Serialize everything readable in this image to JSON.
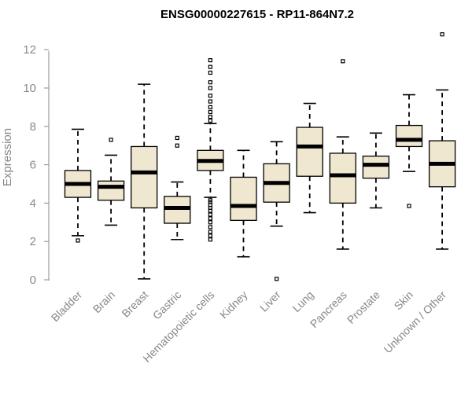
{
  "chart_data": {
    "type": "box",
    "title": "ENSG00000227615 - RP11-864N7.2",
    "ylabel": "Expression",
    "xlabel": "",
    "ylim": [
      0,
      12.5
    ],
    "yticks": [
      0,
      2,
      4,
      6,
      8,
      10,
      12
    ],
    "grid": false,
    "categories": [
      "Bladder",
      "Brain",
      "Breast",
      "Gastric",
      "Hematopoietic cells",
      "Kidney",
      "Liver",
      "Lung",
      "Pancreas",
      "Prostate",
      "Skin",
      "Unknown / Other"
    ],
    "boxes": [
      {
        "min": 2.3,
        "q1": 4.3,
        "median": 5.0,
        "q3": 5.7,
        "max": 7.85,
        "outliers": [
          2.05
        ]
      },
      {
        "min": 2.85,
        "q1": 4.15,
        "median": 4.85,
        "q3": 5.15,
        "max": 6.5,
        "outliers": [
          7.3
        ]
      },
      {
        "min": 0.05,
        "q1": 3.75,
        "median": 5.6,
        "q3": 6.95,
        "max": 10.2,
        "outliers": []
      },
      {
        "min": 2.1,
        "q1": 2.95,
        "median": 3.75,
        "q3": 4.35,
        "max": 5.1,
        "outliers": [
          7.0,
          7.4
        ]
      },
      {
        "min": 4.3,
        "q1": 5.7,
        "median": 6.2,
        "q3": 6.75,
        "max": 8.15,
        "outliers": [
          2.1,
          2.3,
          2.5,
          2.75,
          3.0,
          3.2,
          3.4,
          3.6,
          3.75,
          3.9,
          4.05,
          4.15,
          8.3,
          8.5,
          8.75,
          9.0,
          9.3,
          9.6,
          10.0,
          10.3,
          10.8,
          11.1,
          11.45
        ]
      },
      {
        "min": 1.2,
        "q1": 3.1,
        "median": 3.85,
        "q3": 5.35,
        "max": 6.75,
        "outliers": []
      },
      {
        "min": 2.8,
        "q1": 4.05,
        "median": 5.05,
        "q3": 6.05,
        "max": 7.2,
        "outliers": [
          0.05
        ]
      },
      {
        "min": 3.5,
        "q1": 5.4,
        "median": 6.95,
        "q3": 7.95,
        "max": 9.2,
        "outliers": []
      },
      {
        "min": 1.6,
        "q1": 4.0,
        "median": 5.45,
        "q3": 6.6,
        "max": 7.45,
        "outliers": [
          11.4
        ]
      },
      {
        "min": 3.75,
        "q1": 5.3,
        "median": 6.0,
        "q3": 6.45,
        "max": 7.65,
        "outliers": []
      },
      {
        "min": 5.65,
        "q1": 6.95,
        "median": 7.3,
        "q3": 8.05,
        "max": 9.65,
        "outliers": [
          3.85
        ]
      },
      {
        "min": 1.6,
        "q1": 4.85,
        "median": 6.05,
        "q3": 7.25,
        "max": 9.9,
        "outliers": [
          12.8
        ]
      }
    ]
  }
}
